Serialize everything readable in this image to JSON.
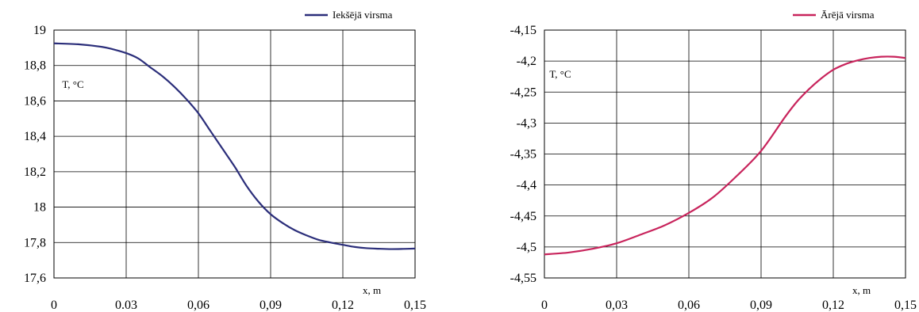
{
  "chart_data": [
    {
      "type": "line",
      "title": "",
      "xlabel": "x, m",
      "ylabel": "T, °C",
      "xlim": [
        0,
        0.15
      ],
      "ylim": [
        17.6,
        19.0
      ],
      "x_ticks": [
        0,
        0.03,
        0.06,
        0.09,
        0.12,
        0.15
      ],
      "x_tick_labels": [
        "0",
        "0.03",
        "0,06",
        "0,09",
        "0,12",
        "0,15"
      ],
      "y_ticks": [
        17.6,
        17.8,
        18.0,
        18.2,
        18.4,
        18.6,
        18.8,
        19.0
      ],
      "y_tick_labels": [
        "17,6",
        "17,8",
        "18",
        "18,2",
        "18,4",
        "18,6",
        "18,8",
        "19"
      ],
      "grid": true,
      "legend_position": "top-right",
      "series": [
        {
          "name": "Iekšējā virsma",
          "color": "#2b2e7a",
          "x": [
            0,
            0.01,
            0.02,
            0.025,
            0.03,
            0.035,
            0.04,
            0.045,
            0.05,
            0.055,
            0.06,
            0.065,
            0.07,
            0.075,
            0.08,
            0.085,
            0.09,
            0.095,
            0.1,
            0.105,
            0.11,
            0.115,
            0.12,
            0.125,
            0.13,
            0.135,
            0.14,
            0.145,
            0.15
          ],
          "y": [
            18.925,
            18.92,
            18.905,
            18.89,
            18.87,
            18.84,
            18.79,
            18.74,
            18.68,
            18.61,
            18.53,
            18.43,
            18.33,
            18.23,
            18.12,
            18.03,
            17.96,
            17.91,
            17.87,
            17.84,
            17.815,
            17.8,
            17.787,
            17.775,
            17.768,
            17.765,
            17.763,
            17.764,
            17.766
          ]
        }
      ]
    },
    {
      "type": "line",
      "title": "",
      "xlabel": "x, m",
      "ylabel": "T,  °C",
      "xlim": [
        0,
        0.15
      ],
      "ylim": [
        -4.55,
        -4.15
      ],
      "x_ticks": [
        0,
        0.03,
        0.06,
        0.09,
        0.12,
        0.15
      ],
      "x_tick_labels": [
        "0",
        "0,03",
        "0,06",
        "0,09",
        "0,12",
        "0,15"
      ],
      "y_ticks": [
        -4.55,
        -4.5,
        -4.45,
        -4.4,
        -4.35,
        -4.3,
        -4.25,
        -4.2,
        -4.15
      ],
      "y_tick_labels": [
        "-4,55",
        "-4,5",
        "-4,45",
        "-4,4",
        "-4,35",
        "-4,3",
        "-4,25",
        "-4,2",
        "-4,15"
      ],
      "grid": true,
      "legend_position": "top-right",
      "series": [
        {
          "name": "Ārējā virsma",
          "color": "#c8245c",
          "x": [
            0,
            0.01,
            0.02,
            0.03,
            0.04,
            0.05,
            0.06,
            0.07,
            0.08,
            0.09,
            0.1,
            0.105,
            0.11,
            0.115,
            0.12,
            0.125,
            0.13,
            0.135,
            0.14,
            0.145,
            0.15
          ],
          "y": [
            -4.512,
            -4.509,
            -4.503,
            -4.494,
            -4.48,
            -4.465,
            -4.445,
            -4.42,
            -4.385,
            -4.345,
            -4.29,
            -4.265,
            -4.245,
            -4.228,
            -4.214,
            -4.205,
            -4.199,
            -4.195,
            -4.193,
            -4.193,
            -4.195
          ]
        }
      ]
    }
  ]
}
